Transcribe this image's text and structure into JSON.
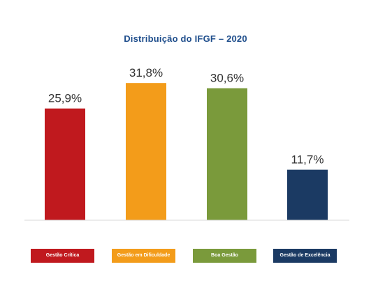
{
  "chart_data": {
    "type": "bar",
    "title": "Distribuição do IFGF – 2020",
    "categories": [
      "Gestão Crítica",
      "Gestão em Dificuldade",
      "Boa Gestão",
      "Gestão de Excelência"
    ],
    "values": [
      25.9,
      31.8,
      30.6,
      11.7
    ],
    "value_labels": [
      "25,9%",
      "31,8%",
      "30,6%",
      "11,7%"
    ],
    "colors": [
      "#c0191e",
      "#f39c1a",
      "#7a9a3b",
      "#1b3a63"
    ],
    "ylim": [
      0,
      35
    ],
    "grid": false,
    "legend_placement": "bottom"
  }
}
